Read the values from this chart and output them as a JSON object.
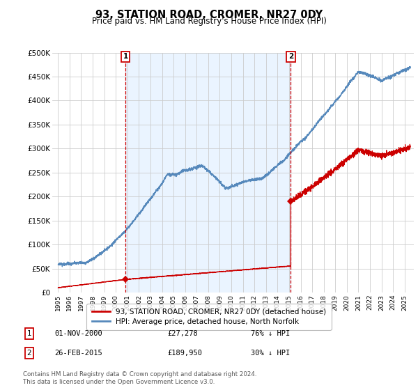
{
  "title": "93, STATION ROAD, CROMER, NR27 0DY",
  "subtitle": "Price paid vs. HM Land Registry's House Price Index (HPI)",
  "ylim": [
    0,
    500000
  ],
  "yticks": [
    0,
    50000,
    100000,
    150000,
    200000,
    250000,
    300000,
    350000,
    400000,
    450000,
    500000
  ],
  "ytick_labels": [
    "£0",
    "£50K",
    "£100K",
    "£150K",
    "£200K",
    "£250K",
    "£300K",
    "£350K",
    "£400K",
    "£450K",
    "£500K"
  ],
  "sale_color": "#cc0000",
  "hpi_color": "#5588bb",
  "hpi_fill_color": "#ddeeff",
  "marker_color": "#cc0000",
  "annotation_box_color": "#cc0000",
  "background_color": "#ffffff",
  "grid_color": "#cccccc",
  "legend_label_sale": "93, STATION ROAD, CROMER, NR27 0DY (detached house)",
  "legend_label_hpi": "HPI: Average price, detached house, North Norfolk",
  "annotation1_date": "01-NOV-2000",
  "annotation1_price": "£27,278",
  "annotation1_hpi": "76% ↓ HPI",
  "annotation2_date": "26-FEB-2015",
  "annotation2_price": "£189,950",
  "annotation2_hpi": "30% ↓ HPI",
  "footer": "Contains HM Land Registry data © Crown copyright and database right 2024.\nThis data is licensed under the Open Government Licence v3.0.",
  "sale1_x": 2000.833,
  "sale1_y": 27278,
  "sale2_x": 2015.15,
  "sale2_y": 189950,
  "xlim_left": 1994.5,
  "xlim_right": 2025.8
}
